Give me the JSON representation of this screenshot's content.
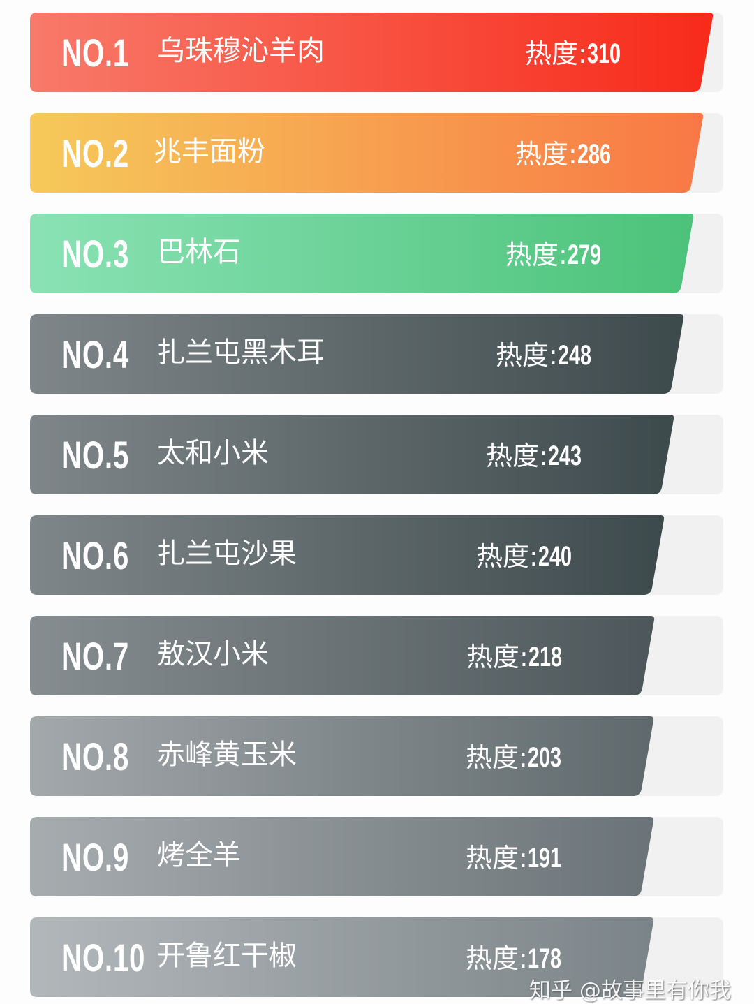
{
  "chart_data": {
    "type": "bar",
    "orientation": "horizontal-ranking",
    "heat_label": "热度:",
    "items": [
      {
        "rank": "NO.1",
        "name": "乌珠穆沁羊肉",
        "value": 310,
        "colors": [
          "#f87a6a",
          "#f82a1a"
        ]
      },
      {
        "rank": "NO.2",
        "name": "兆丰面粉",
        "value": 286,
        "colors": [
          "#f6c95a",
          "#f87845"
        ]
      },
      {
        "rank": "NO.3",
        "name": "巴林石",
        "value": 279,
        "colors": [
          "#8ae2b4",
          "#4cc27a"
        ]
      },
      {
        "rank": "NO.4",
        "name": "扎兰屯黑木耳",
        "value": 248,
        "colors": [
          "#7f8689",
          "#3d4a4c"
        ]
      },
      {
        "rank": "NO.5",
        "name": "太和小米",
        "value": 243,
        "colors": [
          "#7f8689",
          "#3d4a4c"
        ]
      },
      {
        "rank": "NO.6",
        "name": "扎兰屯沙果",
        "value": 240,
        "colors": [
          "#7f8689",
          "#3d4a4c"
        ]
      },
      {
        "rank": "NO.7",
        "name": "敖汉小米",
        "value": 218,
        "colors": [
          "#868d90",
          "#4d575a"
        ]
      },
      {
        "rank": "NO.8",
        "name": "赤峰黄玉米",
        "value": 203,
        "colors": [
          "#a3a8ab",
          "#5f696c"
        ]
      },
      {
        "rank": "NO.9",
        "name": "烤全羊",
        "value": 191,
        "colors": [
          "#a7acaf",
          "#6a7377"
        ]
      },
      {
        "rank": "NO.10",
        "name": "开鲁红干椒",
        "value": 178,
        "colors": [
          "#b2b7ba",
          "#7b8488"
        ]
      }
    ]
  },
  "watermark": "知乎 @故事里有你我"
}
